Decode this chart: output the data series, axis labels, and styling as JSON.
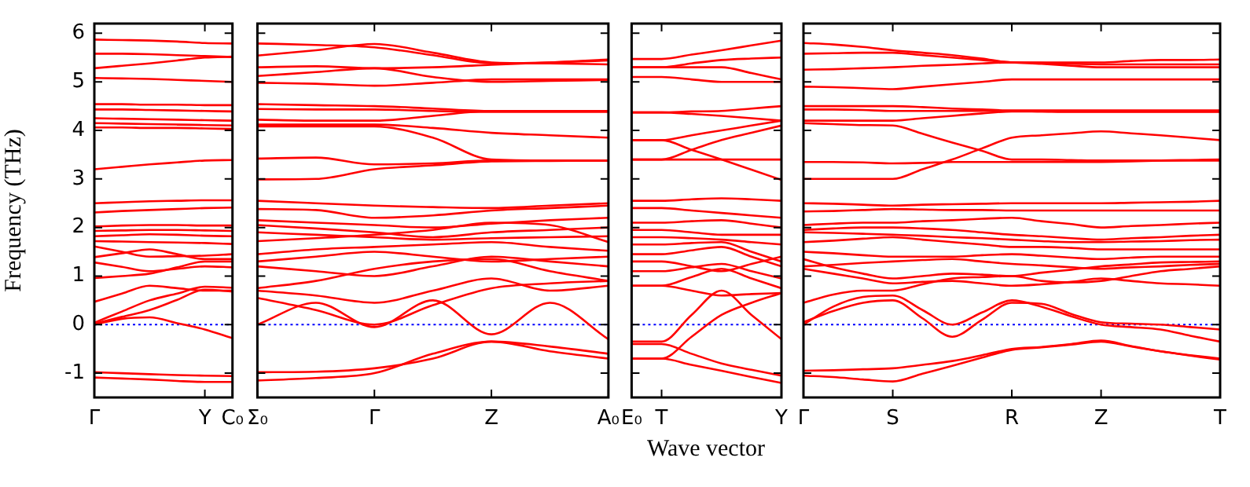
{
  "chart_data": [
    {
      "type": "line",
      "ylabel": "Frequency (THz)",
      "categories": [
        "Γ",
        null,
        null,
        null,
        "Y",
        "C₀"
      ],
      "ylim": [
        -1.5,
        6.2
      ],
      "yticks": [
        -1,
        0,
        1,
        2,
        3,
        4,
        5,
        6
      ],
      "grid": false,
      "marker": "none",
      "line_style": "solid",
      "ref_lines": [
        {
          "axis": "y",
          "value": 0,
          "color": "#0000ff",
          "line_style": "dotted"
        }
      ],
      "series": [
        {
          "color": "#ff0000",
          "values": [
            5.87,
            5.86,
            5.85,
            5.83,
            5.8,
            5.79
          ]
        },
        {
          "color": "#ff0000",
          "values": [
            5.58,
            5.58,
            5.57,
            5.55,
            5.53,
            5.51
          ]
        },
        {
          "color": "#ff0000",
          "values": [
            5.28,
            5.33,
            5.38,
            5.44,
            5.5,
            5.52
          ]
        },
        {
          "color": "#ff0000",
          "values": [
            5.08,
            5.07,
            5.06,
            5.04,
            5.02,
            5.0
          ]
        },
        {
          "color": "#ff0000",
          "values": [
            4.54,
            4.54,
            4.53,
            4.53,
            4.52,
            4.52
          ]
        },
        {
          "color": "#ff0000",
          "values": [
            4.43,
            4.43,
            4.42,
            4.41,
            4.4,
            4.39
          ]
        },
        {
          "color": "#ff0000",
          "values": [
            4.25,
            4.24,
            4.23,
            4.22,
            4.21,
            4.2
          ]
        },
        {
          "color": "#ff0000",
          "values": [
            4.15,
            4.14,
            4.13,
            4.12,
            4.11,
            4.1
          ]
        },
        {
          "color": "#ff0000",
          "values": [
            4.06,
            4.06,
            4.05,
            4.05,
            4.04,
            4.03
          ]
        },
        {
          "color": "#ff0000",
          "values": [
            3.2,
            3.25,
            3.3,
            3.34,
            3.38,
            3.39
          ]
        },
        {
          "color": "#ff0000",
          "values": [
            2.5,
            2.52,
            2.54,
            2.55,
            2.56,
            2.56
          ]
        },
        {
          "color": "#ff0000",
          "values": [
            2.31,
            2.34,
            2.36,
            2.38,
            2.4,
            2.41
          ]
        },
        {
          "color": "#ff0000",
          "values": [
            2.02,
            2.04,
            2.05,
            2.05,
            2.04,
            2.04
          ]
        },
        {
          "color": "#ff0000",
          "values": [
            1.93,
            1.94,
            1.95,
            1.95,
            1.94,
            1.93
          ]
        },
        {
          "color": "#ff0000",
          "values": [
            1.82,
            1.84,
            1.86,
            1.85,
            1.83,
            1.82
          ]
        },
        {
          "color": "#ff0000",
          "values": [
            1.72,
            1.71,
            1.7,
            1.69,
            1.68,
            1.66
          ]
        },
        {
          "color": "#ff0000",
          "values": [
            1.61,
            1.5,
            1.4,
            1.41,
            1.42,
            1.45
          ]
        },
        {
          "color": "#ff0000",
          "values": [
            1.39,
            1.47,
            1.55,
            1.45,
            1.35,
            1.35
          ]
        },
        {
          "color": "#ff0000",
          "values": [
            1.28,
            1.19,
            1.1,
            1.15,
            1.2,
            1.18
          ]
        },
        {
          "color": "#ff0000",
          "values": [
            0.96,
            1.0,
            1.05,
            1.18,
            1.3,
            1.3
          ]
        },
        {
          "color": "#ff0000",
          "values": [
            0.47,
            0.64,
            0.8,
            0.75,
            0.7,
            0.7
          ]
        },
        {
          "color": "#ff0000",
          "values": [
            0.04,
            0.27,
            0.5,
            0.64,
            0.78,
            0.76
          ]
        },
        {
          "color": "#ff0000",
          "values": [
            0.02,
            0.16,
            0.3,
            0.51,
            0.72,
            0.68
          ]
        },
        {
          "color": "#ff0000",
          "values": [
            0,
            0.12,
            0.15,
            0.03,
            -0.1,
            -0.28
          ]
        },
        {
          "color": "#ff0000",
          "values": [
            -0.98,
            -1.0,
            -1.02,
            -1.04,
            -1.05,
            -1.06
          ]
        },
        {
          "color": "#ff0000",
          "values": [
            -1.09,
            -1.11,
            -1.13,
            -1.16,
            -1.18,
            -1.18
          ]
        }
      ]
    },
    {
      "type": "line",
      "categories": [
        "Σ₀",
        null,
        "Γ",
        null,
        "Z",
        null,
        "A₀"
      ],
      "ylim": [
        -1.5,
        6.2
      ],
      "yticks": [
        -1,
        0,
        1,
        2,
        3,
        4,
        5,
        6
      ],
      "tick_labels": "x",
      "grid": false,
      "marker": "none",
      "line_style": "solid",
      "ref_lines": [
        {
          "axis": "y",
          "value": 0,
          "color": "#0000ff",
          "line_style": "dotted"
        }
      ],
      "series": [
        {
          "color": "#ff0000",
          "values": [
            5.79,
            5.76,
            5.71,
            5.55,
            5.38,
            5.4,
            5.44
          ]
        },
        {
          "color": "#ff0000",
          "values": [
            5.54,
            5.65,
            5.78,
            5.6,
            5.4,
            5.38,
            5.36
          ]
        },
        {
          "color": "#ff0000",
          "values": [
            5.3,
            5.32,
            5.28,
            5.3,
            5.35,
            5.4,
            5.46
          ]
        },
        {
          "color": "#ff0000",
          "values": [
            5.12,
            5.2,
            5.28,
            5.1,
            5.0,
            5.02,
            5.04
          ]
        },
        {
          "color": "#ff0000",
          "values": [
            4.98,
            4.96,
            4.92,
            4.98,
            5.05,
            5.05,
            5.05
          ]
        },
        {
          "color": "#ff0000",
          "values": [
            4.54,
            4.52,
            4.5,
            4.45,
            4.4,
            4.4,
            4.4
          ]
        },
        {
          "color": "#ff0000",
          "values": [
            4.44,
            4.43,
            4.43,
            4.4,
            4.38,
            4.38,
            4.38
          ]
        },
        {
          "color": "#ff0000",
          "values": [
            4.22,
            4.2,
            4.2,
            4.3,
            4.4,
            4.4,
            4.4
          ]
        },
        {
          "color": "#ff0000",
          "values": [
            4.12,
            4.12,
            4.12,
            4.05,
            3.95,
            3.9,
            3.85
          ]
        },
        {
          "color": "#ff0000",
          "values": [
            4.08,
            4.08,
            4.08,
            3.85,
            3.4,
            3.38,
            3.38
          ]
        },
        {
          "color": "#ff0000",
          "values": [
            3.42,
            3.44,
            3.3,
            3.32,
            3.38,
            3.38,
            3.38
          ]
        },
        {
          "color": "#ff0000",
          "values": [
            2.99,
            3.0,
            3.2,
            3.28,
            3.36,
            3.37,
            3.38
          ]
        },
        {
          "color": "#ff0000",
          "values": [
            2.55,
            2.5,
            2.45,
            2.42,
            2.4,
            2.45,
            2.5
          ]
        },
        {
          "color": "#ff0000",
          "values": [
            2.38,
            2.36,
            2.2,
            2.25,
            2.35,
            2.4,
            2.45
          ]
        },
        {
          "color": "#ff0000",
          "values": [
            2.15,
            2.1,
            2.05,
            2.0,
            2.08,
            2.15,
            2.2
          ]
        },
        {
          "color": "#ff0000",
          "values": [
            2.05,
            1.98,
            1.9,
            1.8,
            1.9,
            1.95,
            2.0
          ]
        },
        {
          "color": "#ff0000",
          "values": [
            1.9,
            1.85,
            1.8,
            1.75,
            1.78,
            1.8,
            1.82
          ]
        },
        {
          "color": "#ff0000",
          "values": [
            1.72,
            1.78,
            1.85,
            1.95,
            2.1,
            2.05,
            1.7
          ]
        },
        {
          "color": "#ff0000",
          "values": [
            1.45,
            1.55,
            1.6,
            1.65,
            1.7,
            1.6,
            1.52
          ]
        },
        {
          "color": "#ff0000",
          "values": [
            1.3,
            1.4,
            1.5,
            1.4,
            1.3,
            1.35,
            1.4
          ]
        },
        {
          "color": "#ff0000",
          "values": [
            1.2,
            1.1,
            1.0,
            1.2,
            1.4,
            1.3,
            1.2
          ]
        },
        {
          "color": "#ff0000",
          "values": [
            0.75,
            0.9,
            1.15,
            1.3,
            1.35,
            1.1,
            0.9
          ]
        },
        {
          "color": "#ff0000",
          "values": [
            0.7,
            0.6,
            0.45,
            0.7,
            0.95,
            0.7,
            0.8
          ]
        },
        {
          "color": "#ff0000",
          "values": [
            0,
            0.45,
            -0.05,
            0.5,
            -0.2,
            0.45,
            -0.3
          ]
        },
        {
          "color": "#ff0000",
          "values": [
            0.55,
            0.3,
            0,
            0.4,
            0.75,
            0.85,
            0.9
          ]
        },
        {
          "color": "#ff0000",
          "values": [
            -0.98,
            -0.97,
            -0.9,
            -0.7,
            -0.35,
            -0.45,
            -0.6
          ]
        },
        {
          "color": "#ff0000",
          "values": [
            -1.15,
            -1.1,
            -1.0,
            -0.6,
            -0.35,
            -0.55,
            -0.7
          ]
        }
      ]
    },
    {
      "type": "line",
      "xlabel": "Wave vector",
      "categories": [
        "E₀",
        "T",
        null,
        null,
        null,
        "Y"
      ],
      "ylim": [
        -1.5,
        6.2
      ],
      "yticks": [
        -1,
        0,
        1,
        2,
        3,
        4,
        5,
        6
      ],
      "tick_labels": "x",
      "grid": false,
      "marker": "none",
      "line_style": "solid",
      "ref_lines": [
        {
          "axis": "y",
          "value": 0,
          "color": "#0000ff",
          "line_style": "dotted"
        }
      ],
      "series": [
        {
          "color": "#ff0000",
          "values": [
            5.47,
            5.47,
            5.56,
            5.65,
            5.75,
            5.85
          ]
        },
        {
          "color": "#ff0000",
          "values": [
            5.3,
            5.3,
            5.38,
            5.45,
            5.48,
            5.5
          ]
        },
        {
          "color": "#ff0000",
          "values": [
            5.3,
            5.3,
            5.3,
            5.3,
            5.18,
            5.05
          ]
        },
        {
          "color": "#ff0000",
          "values": [
            5.1,
            5.1,
            5.05,
            5.0,
            5.0,
            5.0
          ]
        },
        {
          "color": "#ff0000",
          "values": [
            4.37,
            4.37,
            4.39,
            4.4,
            4.45,
            4.5
          ]
        },
        {
          "color": "#ff0000",
          "values": [
            4.37,
            4.37,
            4.34,
            4.3,
            4.25,
            4.2
          ]
        },
        {
          "color": "#ff0000",
          "values": [
            3.8,
            3.8,
            3.6,
            3.4,
            3.19,
            2.98
          ]
        },
        {
          "color": "#ff0000",
          "values": [
            3.8,
            3.8,
            3.9,
            4.0,
            4.1,
            4.2
          ]
        },
        {
          "color": "#ff0000",
          "values": [
            3.4,
            3.4,
            3.4,
            3.4,
            3.4,
            3.4
          ]
        },
        {
          "color": "#ff0000",
          "values": [
            3.4,
            3.4,
            3.6,
            3.8,
            3.95,
            4.1
          ]
        },
        {
          "color": "#ff0000",
          "values": [
            2.55,
            2.55,
            2.58,
            2.6,
            2.58,
            2.55
          ]
        },
        {
          "color": "#ff0000",
          "values": [
            2.4,
            2.4,
            2.35,
            2.3,
            2.25,
            2.2
          ]
        },
        {
          "color": "#ff0000",
          "values": [
            2.1,
            2.1,
            2.13,
            2.15,
            2.08,
            2.0
          ]
        },
        {
          "color": "#ff0000",
          "values": [
            1.95,
            1.95,
            1.9,
            1.85,
            1.85,
            1.85
          ]
        },
        {
          "color": "#ff0000",
          "values": [
            1.8,
            1.8,
            1.78,
            1.75,
            1.7,
            1.65
          ]
        },
        {
          "color": "#ff0000",
          "values": [
            1.65,
            1.65,
            1.68,
            1.7,
            1.5,
            1.3
          ]
        },
        {
          "color": "#ff0000",
          "values": [
            1.45,
            1.45,
            1.53,
            1.6,
            1.4,
            1.2
          ]
        },
        {
          "color": "#ff0000",
          "values": [
            1.3,
            1.3,
            1.2,
            1.1,
            1.25,
            1.4
          ]
        },
        {
          "color": "#ff0000",
          "values": [
            1.1,
            1.1,
            1.18,
            1.25,
            1.1,
            0.95
          ]
        },
        {
          "color": "#ff0000",
          "values": [
            0.8,
            0.8,
            0.7,
            0.6,
            0.63,
            0.65
          ]
        },
        {
          "color": "#ff0000",
          "values": [
            0.8,
            0.8,
            0.98,
            1.15,
            0.95,
            0.75
          ]
        },
        {
          "color": "#ff0000",
          "values": [
            -0.35,
            -0.35,
            0.2,
            0.7,
            0.2,
            -0.3
          ]
        },
        {
          "color": "#ff0000",
          "values": [
            -0.7,
            -0.7,
            -0.25,
            0.2,
            0.45,
            0.65
          ]
        },
        {
          "color": "#ff0000",
          "values": [
            -0.4,
            -0.4,
            -0.6,
            -0.8,
            -0.93,
            -1.05
          ]
        },
        {
          "color": "#ff0000",
          "values": [
            -0.7,
            -0.7,
            -0.83,
            -0.95,
            -1.08,
            -1.2
          ]
        }
      ]
    },
    {
      "type": "line",
      "categories": [
        "Γ",
        null,
        null,
        "S",
        null,
        null,
        null,
        "R",
        null,
        null,
        "Z",
        null,
        null,
        null,
        "T"
      ],
      "ylim": [
        -1.5,
        6.2
      ],
      "yticks": [
        -1,
        0,
        1,
        2,
        3,
        4,
        5,
        6
      ],
      "tick_labels": "x",
      "grid": false,
      "marker": "none",
      "line_style": "solid",
      "ref_lines": [
        {
          "axis": "y",
          "value": 0,
          "color": "#0000ff",
          "line_style": "dotted"
        }
      ],
      "series": [
        {
          "color": "#ff0000",
          "values": [
            5.8,
            5.77,
            5.72,
            5.65,
            5.6,
            5.55,
            5.48,
            5.4,
            5.4,
            5.4,
            5.4,
            5.43,
            5.45,
            5.45,
            5.46
          ]
        },
        {
          "color": "#ff0000",
          "values": [
            5.58,
            5.59,
            5.6,
            5.6,
            5.55,
            5.5,
            5.45,
            5.4,
            5.37,
            5.33,
            5.3,
            5.3,
            5.3,
            5.3,
            5.3
          ]
        },
        {
          "color": "#ff0000",
          "values": [
            5.25,
            5.26,
            5.28,
            5.3,
            5.33,
            5.35,
            5.38,
            5.4,
            5.39,
            5.37,
            5.36,
            5.36,
            5.36,
            5.36,
            5.36
          ]
        },
        {
          "color": "#ff0000",
          "values": [
            4.9,
            4.89,
            4.87,
            4.85,
            4.9,
            4.95,
            5.0,
            5.05,
            5.05,
            5.05,
            5.05,
            5.05,
            5.05,
            5.05,
            5.05
          ]
        },
        {
          "color": "#ff0000",
          "values": [
            4.5,
            4.5,
            4.5,
            4.5,
            4.48,
            4.45,
            4.43,
            4.41,
            4.41,
            4.41,
            4.41,
            4.41,
            4.41,
            4.41,
            4.41
          ]
        },
        {
          "color": "#ff0000",
          "values": [
            4.43,
            4.43,
            4.42,
            4.4,
            4.4,
            4.4,
            4.4,
            4.4,
            4.39,
            4.38,
            4.38,
            4.38,
            4.38,
            4.38,
            4.38
          ]
        },
        {
          "color": "#ff0000",
          "values": [
            4.2,
            4.2,
            4.2,
            4.2,
            4.25,
            4.3,
            4.35,
            4.39,
            4.39,
            4.39,
            4.39,
            4.39,
            4.39,
            4.39,
            4.39
          ]
        },
        {
          "color": "#ff0000",
          "values": [
            4.15,
            4.13,
            4.11,
            4.1,
            3.93,
            3.75,
            3.58,
            3.4,
            3.4,
            3.39,
            3.38,
            3.38,
            3.38,
            3.38,
            3.38
          ]
        },
        {
          "color": "#ff0000",
          "values": [
            3.35,
            3.35,
            3.34,
            3.32,
            3.33,
            3.35,
            3.35,
            3.35,
            3.35,
            3.35,
            3.35,
            3.36,
            3.38,
            3.39,
            3.4
          ]
        },
        {
          "color": "#ff0000",
          "values": [
            3.0,
            3.0,
            3.0,
            3.0,
            3.2,
            3.4,
            3.63,
            3.85,
            3.9,
            3.94,
            3.98,
            3.94,
            3.9,
            3.85,
            3.8
          ]
        },
        {
          "color": "#ff0000",
          "values": [
            2.5,
            2.49,
            2.47,
            2.45,
            2.47,
            2.48,
            2.49,
            2.5,
            2.5,
            2.5,
            2.5,
            2.51,
            2.52,
            2.53,
            2.55
          ]
        },
        {
          "color": "#ff0000",
          "values": [
            2.33,
            2.34,
            2.36,
            2.38,
            2.37,
            2.36,
            2.36,
            2.35,
            2.35,
            2.35,
            2.35,
            2.35,
            2.35,
            2.35,
            2.35
          ]
        },
        {
          "color": "#ff0000",
          "values": [
            2.05,
            2.08,
            2.1,
            2.1,
            2.13,
            2.15,
            2.18,
            2.2,
            2.13,
            2.07,
            2.0,
            2.03,
            2.05,
            2.08,
            2.1
          ]
        },
        {
          "color": "#ff0000",
          "values": [
            1.95,
            1.98,
            2.0,
            2.0,
            1.98,
            1.95,
            1.9,
            1.85,
            1.82,
            1.78,
            1.75,
            1.78,
            1.8,
            1.83,
            1.85
          ]
        },
        {
          "color": "#ff0000",
          "values": [
            1.9,
            1.89,
            1.87,
            1.85,
            1.83,
            1.8,
            1.78,
            1.75,
            1.72,
            1.7,
            1.7,
            1.71,
            1.72,
            1.74,
            1.75
          ]
        },
        {
          "color": "#ff0000",
          "values": [
            1.7,
            1.73,
            1.77,
            1.8,
            1.75,
            1.7,
            1.65,
            1.6,
            1.6,
            1.58,
            1.55,
            1.55,
            1.55,
            1.55,
            1.55
          ]
        },
        {
          "color": "#ff0000",
          "values": [
            1.5,
            1.47,
            1.43,
            1.4,
            1.4,
            1.4,
            1.43,
            1.45,
            1.42,
            1.38,
            1.35,
            1.38,
            1.4,
            1.4,
            1.4
          ]
        },
        {
          "color": "#ff0000",
          "values": [
            1.35,
            1.18,
            1.05,
            0.95,
            1.0,
            1.05,
            1.03,
            1.0,
            1.07,
            1.13,
            1.2,
            1.24,
            1.28,
            1.29,
            1.3
          ]
        },
        {
          "color": "#ff0000",
          "values": [
            1.2,
            1.23,
            1.27,
            1.3,
            1.33,
            1.35,
            1.3,
            1.25,
            1.22,
            1.18,
            1.15,
            1.18,
            1.2,
            1.23,
            1.25
          ]
        },
        {
          "color": "#ff0000",
          "values": [
            1.15,
            1.05,
            0.95,
            0.85,
            0.88,
            0.9,
            0.85,
            0.8,
            0.83,
            0.88,
            0.95,
            0.9,
            0.85,
            0.83,
            0.8
          ]
        },
        {
          "color": "#ff0000",
          "values": [
            0.45,
            0.62,
            0.7,
            0.7,
            0.83,
            0.95,
            0.98,
            1.0,
            0.9,
            0.87,
            0.9,
            1.0,
            1.1,
            1.15,
            1.2
          ]
        },
        {
          "color": "#ff0000",
          "values": [
            0,
            0.37,
            0.57,
            0.6,
            0.3,
            0,
            0.25,
            0.5,
            0.37,
            0.17,
            0,
            -0.05,
            -0.1,
            -0.23,
            -0.35
          ]
        },
        {
          "color": "#ff0000",
          "values": [
            0.05,
            0.28,
            0.45,
            0.5,
            0.13,
            -0.25,
            0.1,
            0.45,
            0.43,
            0.22,
            0.05,
            0.02,
            0,
            -0.05,
            -0.1
          ]
        },
        {
          "color": "#ff0000",
          "values": [
            -0.95,
            -0.94,
            -0.92,
            -0.9,
            -0.83,
            -0.75,
            -0.63,
            -0.5,
            -0.46,
            -0.4,
            -0.33,
            -0.44,
            -0.55,
            -0.63,
            -0.7
          ]
        },
        {
          "color": "#ff0000",
          "values": [
            -1.05,
            -1.08,
            -1.13,
            -1.17,
            -1.01,
            -0.85,
            -0.68,
            -0.52,
            -0.47,
            -0.41,
            -0.35,
            -0.45,
            -0.55,
            -0.64,
            -0.72
          ]
        }
      ]
    }
  ]
}
